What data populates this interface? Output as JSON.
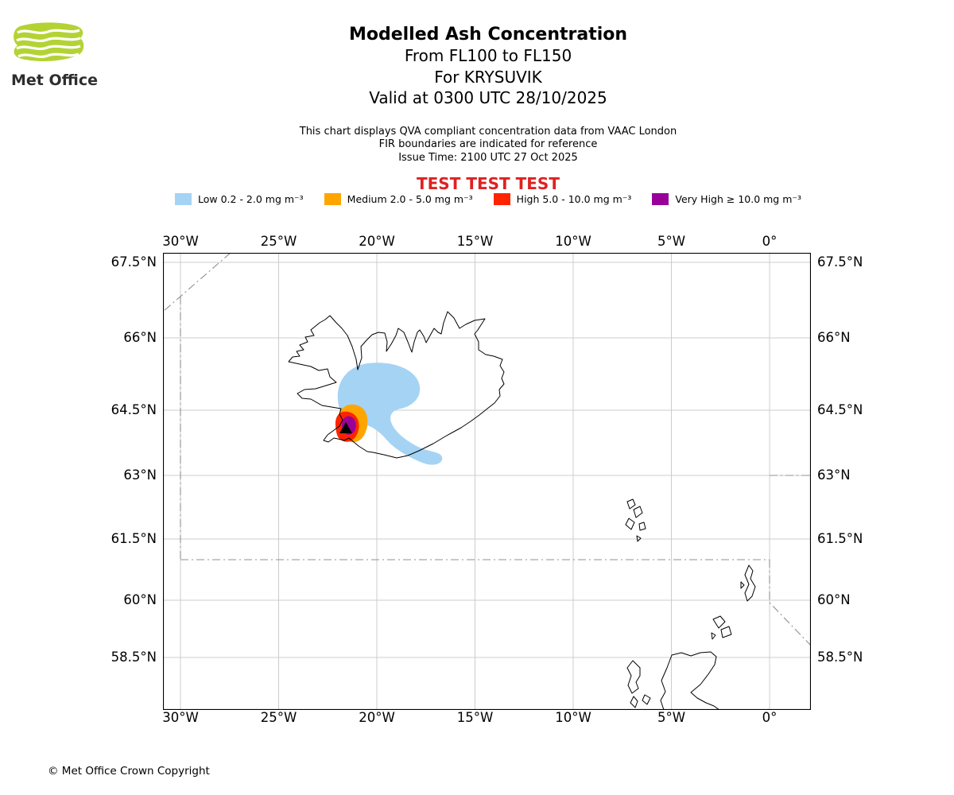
{
  "branding": {
    "logo_text": "Met Office",
    "logo_green": "#b3d334"
  },
  "header": {
    "title": "Modelled Ash Concentration",
    "subtitle1": "From FL100 to FL150",
    "subtitle2": "For KRYSUVIK",
    "subtitle3": "Valid at 0300 UTC 28/10/2025",
    "note1": "This chart displays QVA compliant concentration data from VAAC London",
    "note2": "FIR boundaries are indicated for reference",
    "note3": "Issue Time: 2100 UTC 27 Oct 2025",
    "test_banner": "TEST TEST TEST",
    "test_color": "#dd2222"
  },
  "legend": {
    "items": [
      {
        "name": "low",
        "label": "Low 0.2 - 2.0 mg m⁻³",
        "color": "#a5d3f4"
      },
      {
        "name": "medium",
        "label": "Medium 2.0 - 5.0 mg m⁻³",
        "color": "#ffa500"
      },
      {
        "name": "high",
        "label": "High 5.0 - 10.0 mg m⁻³",
        "color": "#ff2400"
      },
      {
        "name": "very-high",
        "label": "Very High ≥ 10.0 mg m⁻³",
        "color": "#990099"
      }
    ]
  },
  "map": {
    "lon_labels": [
      "30°W",
      "25°W",
      "20°W",
      "15°W",
      "10°W",
      "5°W",
      "0°"
    ],
    "lat_labels": [
      "67.5°N",
      "66°N",
      "64.5°N",
      "63°N",
      "61.5°N",
      "60°N",
      "58.5°N"
    ]
  },
  "footer": {
    "copyright": "© Met Office Crown Copyright"
  },
  "chart_data": {
    "type": "map",
    "title": "Modelled Ash Concentration",
    "region": "Iceland and the Northeast Atlantic (incl. Faroe Islands, Shetland, Orkney, northern Scotland)",
    "flight_level_band": "FL100 to FL150",
    "volcano": {
      "name": "KRYSUVIK",
      "approx_lon_deg": -22.1,
      "approx_lat_deg": 63.9,
      "marker": "black-triangle"
    },
    "valid_time": "0300 UTC 28/10/2025",
    "issue_time": "2100 UTC 27 Oct 2025",
    "source": "VAAC London (QVA compliant concentration data)",
    "lon_axis": {
      "ticks_deg": [
        -30,
        -25,
        -20,
        -15,
        -10,
        -5,
        0
      ],
      "range_deg": [
        -30.9,
        2.2
      ],
      "labels_top_and_bottom": true
    },
    "lat_axis": {
      "ticks_deg": [
        67.5,
        66,
        64.5,
        63,
        61.5,
        60,
        58.5
      ],
      "range_deg": [
        57.2,
        67.7
      ],
      "labels_left_and_right": true,
      "projection": "mercator-like"
    },
    "grid": true,
    "legend_position": "top-center",
    "ash_contours": [
      {
        "level": "Low",
        "concentration_mg_m3": "0.2 - 2.0",
        "color": "#a5d3f4",
        "approx_extent": "Large blob over SW Iceland and Faxaflói Bay, roughly 25°W-19.5°W and 63.4°N-64.7°N, with a narrow plume trailing southeast past the south coast to about 16.5°W 63.0°N"
      },
      {
        "level": "Medium",
        "concentration_mg_m3": "2.0 - 5.0",
        "color": "#ffa500",
        "approx_extent": "Roughly 22.6°W-21.4°W, 63.6°N-64.3°N over the Reykjanes peninsula"
      },
      {
        "level": "High",
        "concentration_mg_m3": "5.0 - 10.0",
        "color": "#ff2400",
        "approx_extent": "Roughly 22.8°W-21.7°W, 63.6°N-64.2°N, bottom-left of the medium area"
      },
      {
        "level": "Very High",
        "concentration_mg_m3": "≥ 10.0",
        "color": "#990099",
        "approx_extent": "Small core roughly 22.4°W-21.8°W, 63.7°N-64.1°N at the vent"
      }
    ],
    "fir_boundaries": "Dash-dot grey lines: diagonal cut in NW corner, segment along 30°W, parallel near 61°N from 30°W to 0°, segment along 0° bending southeast below 60°N, and parallel near 63°N east of 0°",
    "coastlines_shown": [
      "Iceland",
      "Faroe Islands",
      "Shetland",
      "Orkney",
      "Outer Hebrides",
      "Northern Scotland"
    ]
  }
}
